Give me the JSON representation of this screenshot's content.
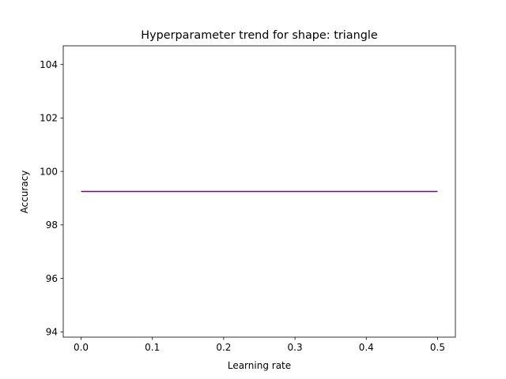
{
  "chart_data": {
    "type": "line",
    "title": "Hyperparameter trend for shape: triangle",
    "xlabel": "Learning rate",
    "ylabel": "Accuracy",
    "xlim": [
      -0.025,
      0.525
    ],
    "ylim": [
      93.8,
      104.7
    ],
    "xticks": [
      0.0,
      0.1,
      0.2,
      0.3,
      0.4,
      0.5
    ],
    "xtick_labels": [
      "0.0",
      "0.1",
      "0.2",
      "0.3",
      "0.4",
      "0.5"
    ],
    "yticks": [
      94,
      96,
      98,
      100,
      102,
      104
    ],
    "ytick_labels": [
      "94",
      "96",
      "98",
      "100",
      "102",
      "104"
    ],
    "grid": false,
    "series": [
      {
        "x": [
          0.0,
          0.5
        ],
        "y": [
          99.25,
          99.25
        ],
        "color": "#800080"
      }
    ]
  }
}
